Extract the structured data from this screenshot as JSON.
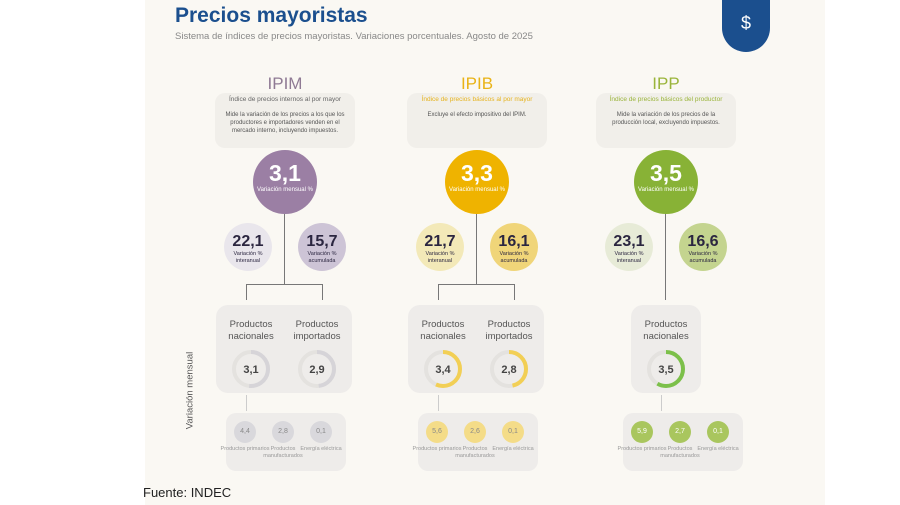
{
  "header": {
    "title": "Precios mayoristas",
    "subtitle": "Sistema de índices de precios mayoristas. Variaciones porcentuales. Agosto de 2025",
    "icon": "price-tag-dollar-icon"
  },
  "side_label": "Variación mensual",
  "source": "Fuente: INDEC",
  "indices": [
    {
      "code": "IPIM",
      "name": "Índice de precios internos al por mayor",
      "description": "Mide la variación de los precios a los que los productores e importadores venden en el mercado interno, incluyendo impuestos.",
      "monthly": "3,1",
      "monthly_label": "Variación mensual %",
      "yoy": "22,1",
      "yoy_label": "Variación % interanual",
      "ytd": "15,7",
      "ytd_label": "Variación % acumulada",
      "colors": {
        "main": "#9b7fa4",
        "title": "#8f7a94",
        "name": "#666",
        "light": "#e9e6ec",
        "mid": "#cdc4d6",
        "ring": "#d6d4d8",
        "dot": "#d9d8dc"
      },
      "products": [
        {
          "label": "Productos nacionales",
          "value": "3,1"
        },
        {
          "label": "Productos importados",
          "value": "2,9"
        }
      ],
      "breakdown": [
        {
          "label": "Productos primarios",
          "value": "4,4"
        },
        {
          "label": "Productos manufacturados",
          "value": "2,8"
        },
        {
          "label": "Energía eléctrica",
          "value": "0,1"
        }
      ]
    },
    {
      "code": "IPIB",
      "name": "Índice de precios básicos al por mayor",
      "description": "Excluye el efecto impositivo del IPIM.",
      "monthly": "3,3",
      "monthly_label": "Variación mensual %",
      "yoy": "21,7",
      "yoy_label": "Variación % interanual",
      "ytd": "16,1",
      "ytd_label": "Variación % acumulada",
      "colors": {
        "main": "#efb300",
        "title": "#e9b316",
        "name": "#e6b31e",
        "light": "#f3e9b8",
        "mid": "#f0d579",
        "ring": "#f2cf55",
        "dot": "#f4dc88"
      },
      "products": [
        {
          "label": "Productos nacionales",
          "value": "3,4"
        },
        {
          "label": "Productos importados",
          "value": "2,8"
        }
      ],
      "breakdown": [
        {
          "label": "Productos primarios",
          "value": "5,6"
        },
        {
          "label": "Productos manufacturados",
          "value": "2,6"
        },
        {
          "label": "Energía eléctrica",
          "value": "0,1"
        }
      ]
    },
    {
      "code": "IPP",
      "name": "Índice de precios básicos del productor",
      "description": "Mide la variación de los precios de la producción local, excluyendo impuestos.",
      "monthly": "3,5",
      "monthly_label": "Variación mensual %",
      "yoy": "23,1",
      "yoy_label": "Variación % interanual",
      "ytd": "16,6",
      "ytd_label": "Variación % acumulada",
      "colors": {
        "main": "#88b236",
        "title": "#9ab43a",
        "name": "#9ab43a",
        "light": "#e7ebd7",
        "mid": "#c4d48f",
        "ring": "#7cc04a",
        "dot": "#a9c65e"
      },
      "products": [
        {
          "label": "Productos nacionales",
          "value": "3,5"
        }
      ],
      "breakdown": [
        {
          "label": "Productos primarios",
          "value": "5,9"
        },
        {
          "label": "Productos manufacturados",
          "value": "2,7"
        },
        {
          "label": "Energía eléctrica",
          "value": "0,1"
        }
      ]
    }
  ]
}
